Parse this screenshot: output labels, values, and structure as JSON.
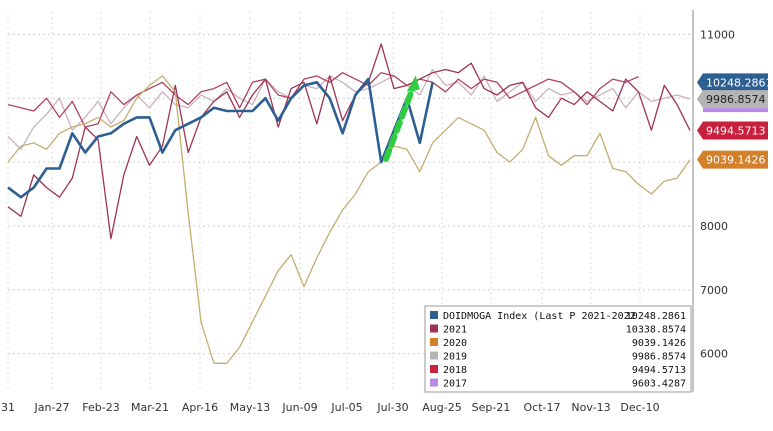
{
  "chart_data": {
    "type": "line",
    "ylim": [
      5400,
      11350
    ],
    "yticks": [
      6000,
      7000,
      8000,
      9000,
      10000,
      11000
    ],
    "xticklabels": [
      "31",
      "Jan-27",
      "Feb-23",
      "Mar-21",
      "Apr-16",
      "May-13",
      "Jun-09",
      "Jul-05",
      "Jul-30",
      "Aug-25",
      "Sep-21",
      "Oct-17",
      "Nov-13",
      "Dec-10"
    ],
    "grid": true,
    "legend_position": "bottom-right",
    "series": [
      {
        "name": "2021",
        "color": "#b0415f",
        "last_value": "10338.8574",
        "values": [
          9900,
          9850,
          9800,
          10000,
          9700,
          9950,
          9550,
          9600,
          10100,
          9900,
          10050,
          10150,
          10250,
          10050,
          9900,
          10100,
          10150,
          10250,
          9850,
          10250,
          10300,
          10050,
          10000,
          10300,
          10350,
          10250,
          10400,
          10300,
          10200,
          10400,
          10350,
          10200,
          10300,
          10250,
          10100,
          10300,
          10150,
          10300,
          10250,
          10000,
          10100,
          10200,
          10300,
          10250,
          10100,
          9900,
          10150,
          10300,
          10250,
          10338
        ]
      },
      {
        "name": "2020",
        "color": "#c3ae6f",
        "last_value": "9039.1426",
        "values": [
          9000,
          9250,
          9300,
          9200,
          9450,
          9550,
          9600,
          9700,
          9550,
          9650,
          10000,
          10200,
          10350,
          10100,
          8200,
          6500,
          5850,
          5850,
          6100,
          6500,
          6900,
          7300,
          7550,
          7050,
          7500,
          7900,
          8250,
          8500,
          8850,
          9000,
          9250,
          9200,
          8850,
          9300,
          9500,
          9700,
          9600,
          9500,
          9150,
          9000,
          9200,
          9700,
          9100,
          8950,
          9100,
          9100,
          9450,
          8900,
          8850,
          8650,
          8500,
          8700,
          8750,
          9039
        ]
      },
      {
        "name": "2019",
        "color": "#c9b1c2",
        "last_value": "9986.8574",
        "values": [
          9400,
          9200,
          9550,
          9750,
          10000,
          9500,
          9700,
          9950,
          9600,
          9850,
          10050,
          9850,
          10100,
          9900,
          9850,
          10050,
          9950,
          10150,
          10000,
          9900,
          10300,
          10100,
          10000,
          10200,
          10150,
          10350,
          10250,
          10100,
          10150,
          10250,
          10350,
          10200,
          10050,
          10450,
          10200,
          10250,
          10050,
          10350,
          9950,
          10100,
          10250,
          9950,
          10150,
          10050,
          10100,
          9950,
          10050,
          10150,
          9850,
          10100,
          9950,
          10000,
          10050,
          9986
        ]
      },
      {
        "name": "2018",
        "color": "#9c3352",
        "last_value": "9494.5713",
        "values": [
          8300,
          8150,
          8800,
          8600,
          8450,
          8750,
          9550,
          9350,
          7800,
          8800,
          9400,
          8950,
          9250,
          10200,
          9150,
          9700,
          9950,
          10100,
          9700,
          10050,
          10300,
          9550,
          10150,
          10250,
          9600,
          10350,
          9650,
          10050,
          10250,
          10850,
          10150,
          10200,
          10300,
          10400,
          10450,
          10400,
          10550,
          10150,
          10050,
          10200,
          10250,
          9850,
          9700,
          10000,
          9900,
          10100,
          9950,
          9800,
          10300,
          10100,
          9500,
          10200,
          9900,
          9495
        ]
      },
      {
        "name": "DOIDMOGA Index (Last P 2021-2022",
        "color": "#2d5f93",
        "last_value": "10248.2861",
        "values": [
          8600,
          8450,
          8600,
          8900,
          8900,
          9450,
          9150,
          9400,
          9450,
          9600,
          9700,
          9700,
          9150,
          9500,
          9600,
          9700,
          9850,
          9800,
          9800,
          9800,
          10000,
          9650,
          10000,
          10200,
          10250,
          10000,
          9450,
          10050,
          10300,
          9000,
          9500,
          10000,
          9300,
          10248
        ]
      }
    ],
    "legend": [
      {
        "name": "DOIDMOGA Index (Last P 2021-2022",
        "value": "10248.2861",
        "color": "#2d5f93"
      },
      {
        "name": "2021",
        "value": "10338.8574",
        "color": "#9c3352"
      },
      {
        "name": "2020",
        "value": "9039.1426",
        "color": "#d47f2a"
      },
      {
        "name": "2019",
        "value": "9986.8574",
        "color": "#b4b4b4"
      },
      {
        "name": "2018",
        "value": "9494.5713",
        "color": "#c8203c"
      },
      {
        "name": "2017",
        "value": "9603.4287",
        "color": "#b88ae6"
      }
    ],
    "right_tags": [
      {
        "value": "10248.2861",
        "color": "#2d5f93",
        "y": 10248,
        "dark": false
      },
      {
        "value": "9986.8574",
        "color": "#b4b4b4",
        "y": 9986,
        "dark": true
      },
      {
        "value": "9494.5713",
        "color": "#c8203c",
        "y": 9494,
        "dark": false
      },
      {
        "value": "9039.1426",
        "color": "#d47f2a",
        "y": 9039,
        "dark": false
      }
    ],
    "annotation": {
      "type": "dashed-arrow",
      "color": "#2ecc40",
      "from": {
        "x": 30.0,
        "y": 9050
      },
      "to": {
        "x": 31.3,
        "y": 10200
      }
    }
  }
}
